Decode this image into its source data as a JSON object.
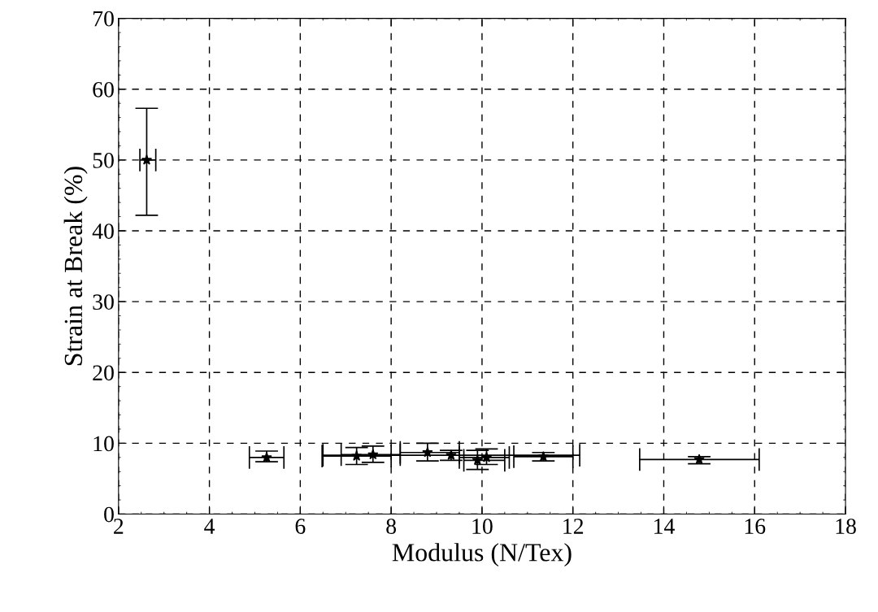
{
  "chart_data": {
    "type": "scatter",
    "xlabel": "Modulus (N/Tex)",
    "ylabel": "Strain at Break (%)",
    "x": [
      2.62,
      5.26,
      7.24,
      7.6,
      8.8,
      9.32,
      9.9,
      10.1,
      11.35,
      14.78
    ],
    "series": [
      {
        "color": "#000000",
        "values": [
          50.0,
          8.0,
          8.2,
          8.4,
          8.7,
          8.3,
          7.6,
          8.0,
          8.1,
          7.7
        ],
        "errors": [
          [
            42.2,
            57.3
          ],
          [
            7.4,
            8.9
          ],
          [
            7.0,
            9.4
          ],
          [
            7.3,
            9.6
          ],
          [
            7.5,
            10.0
          ],
          [
            7.6,
            9.0
          ],
          [
            6.3,
            9.0
          ],
          [
            7.0,
            9.2
          ],
          [
            7.5,
            8.7
          ],
          [
            7.1,
            8.1
          ]
        ],
        "xerrors": [
          [
            2.47,
            2.82
          ],
          [
            4.88,
            5.64
          ],
          [
            6.48,
            8.0
          ],
          [
            6.9,
            8.2
          ],
          [
            8.2,
            9.5
          ],
          [
            6.5,
            12.15
          ],
          [
            9.6,
            10.5
          ],
          [
            9.5,
            10.6
          ],
          [
            10.7,
            12.0
          ],
          [
            13.47,
            16.1
          ]
        ]
      }
    ],
    "xlim": [
      2,
      18
    ],
    "ylim": [
      0,
      70
    ],
    "xticks": [
      2,
      4,
      6,
      8,
      10,
      12,
      14,
      16,
      18
    ],
    "yticks": [
      0,
      10,
      20,
      30,
      40,
      50,
      60,
      70
    ],
    "grid": true,
    "marker": "star"
  }
}
